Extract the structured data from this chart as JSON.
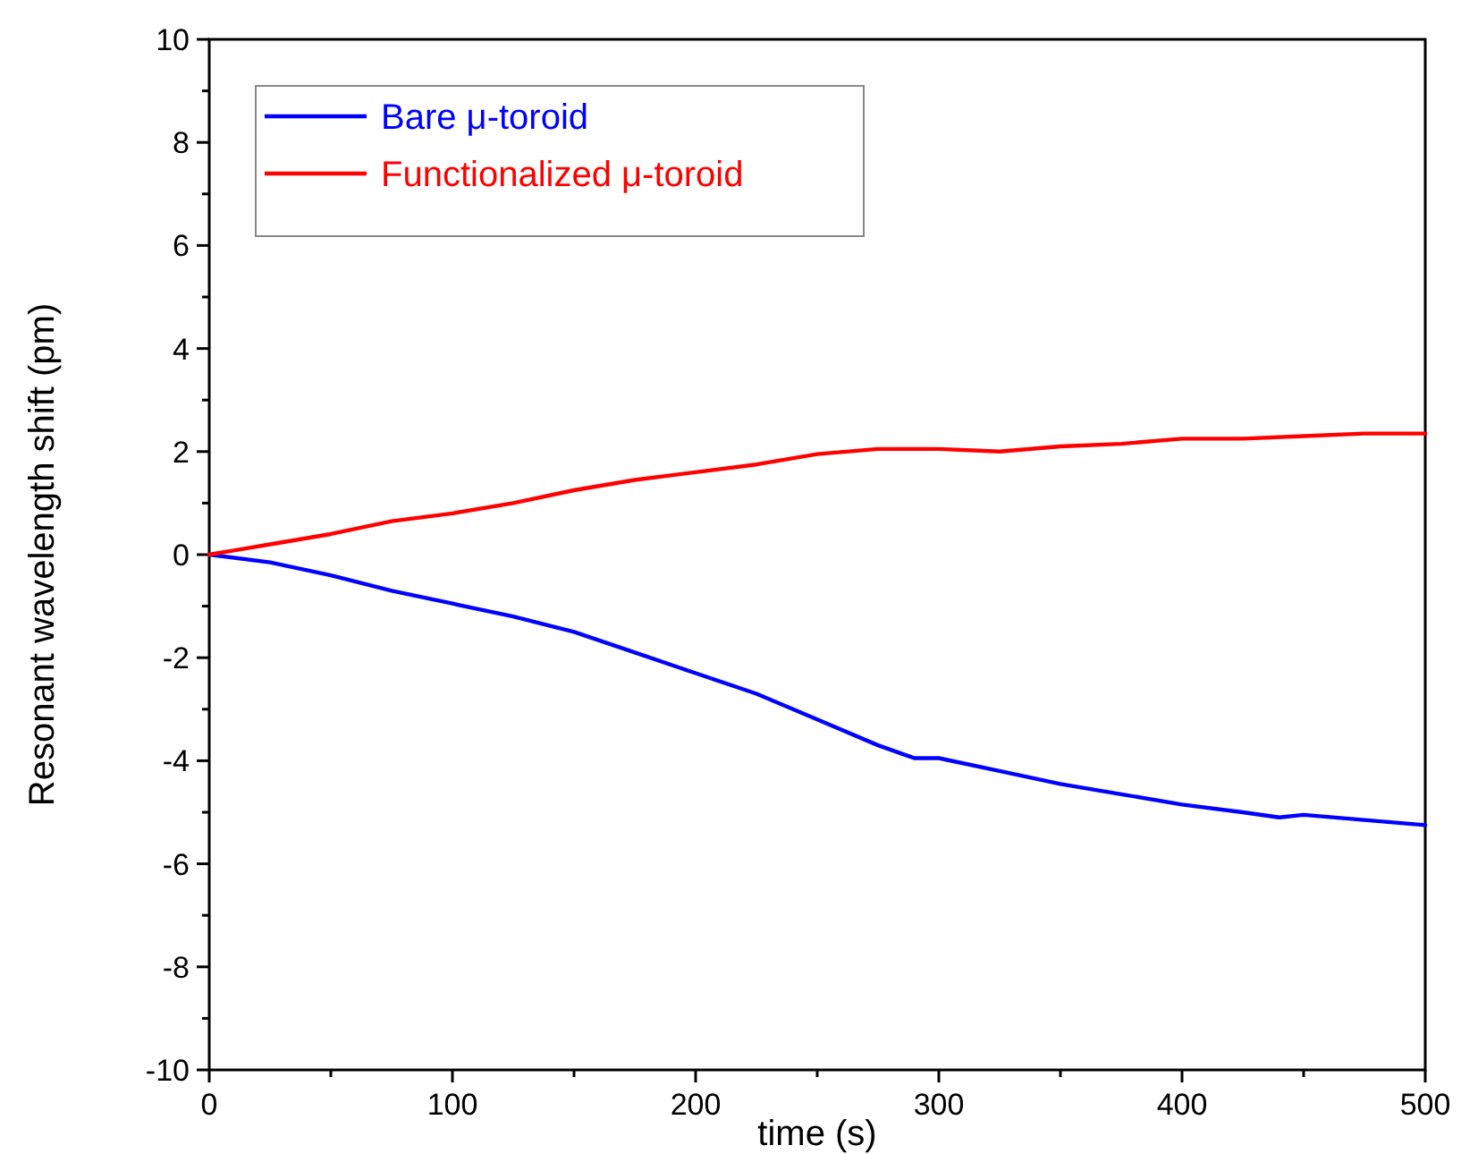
{
  "chart_data": {
    "type": "line",
    "xlabel": "time (s)",
    "ylabel": "Resonant wavelength shift (pm)",
    "xlim": [
      0,
      500
    ],
    "ylim": [
      -10,
      10
    ],
    "xticks": [
      0,
      {
        "value": 50,
        "label": null
      },
      100,
      {
        "value": 150,
        "label": null
      },
      200,
      {
        "value": 250,
        "label": null
      },
      300,
      {
        "value": 350,
        "label": null
      },
      400,
      {
        "value": 450,
        "label": null
      },
      500
    ],
    "yticks": [
      -10,
      {
        "value": -9,
        "label": null
      },
      -8,
      {
        "value": -7,
        "label": null
      },
      -6,
      {
        "value": -5,
        "label": null
      },
      -4,
      {
        "value": -3,
        "label": null
      },
      -2,
      {
        "value": -1,
        "label": null
      },
      0,
      {
        "value": 1,
        "label": null
      },
      2,
      {
        "value": 3,
        "label": null
      },
      4,
      {
        "value": 5,
        "label": null
      },
      6,
      {
        "value": 7,
        "label": null
      },
      8,
      {
        "value": 9,
        "label": null
      },
      10
    ],
    "grid": false,
    "legend": "top left",
    "line_style": "solid",
    "marker": "none",
    "series": [
      {
        "name": "Bare μ-toroid",
        "color": "#0000ff",
        "x": [
          0,
          25,
          50,
          75,
          100,
          125,
          150,
          175,
          200,
          225,
          250,
          275,
          290,
          300,
          325,
          350,
          375,
          400,
          425,
          440,
          450,
          475,
          500
        ],
        "values": [
          0,
          -0.15,
          -0.4,
          -0.7,
          -0.95,
          -1.2,
          -1.5,
          -1.9,
          -2.3,
          -2.7,
          -3.2,
          -3.7,
          -3.95,
          -3.95,
          -4.2,
          -4.45,
          -4.65,
          -4.85,
          -5.0,
          -5.1,
          -5.05,
          -5.15,
          -5.25
        ]
      },
      {
        "name": "Functionalized μ-toroid",
        "color": "#ff0000",
        "x": [
          0,
          25,
          50,
          75,
          100,
          125,
          150,
          175,
          200,
          225,
          250,
          275,
          300,
          325,
          350,
          375,
          400,
          425,
          450,
          475,
          500
        ],
        "values": [
          0,
          0.2,
          0.4,
          0.65,
          0.8,
          1.0,
          1.25,
          1.45,
          1.6,
          1.75,
          1.95,
          2.05,
          2.05,
          2.0,
          2.1,
          2.15,
          2.25,
          2.25,
          2.3,
          2.35,
          2.35
        ]
      }
    ]
  }
}
